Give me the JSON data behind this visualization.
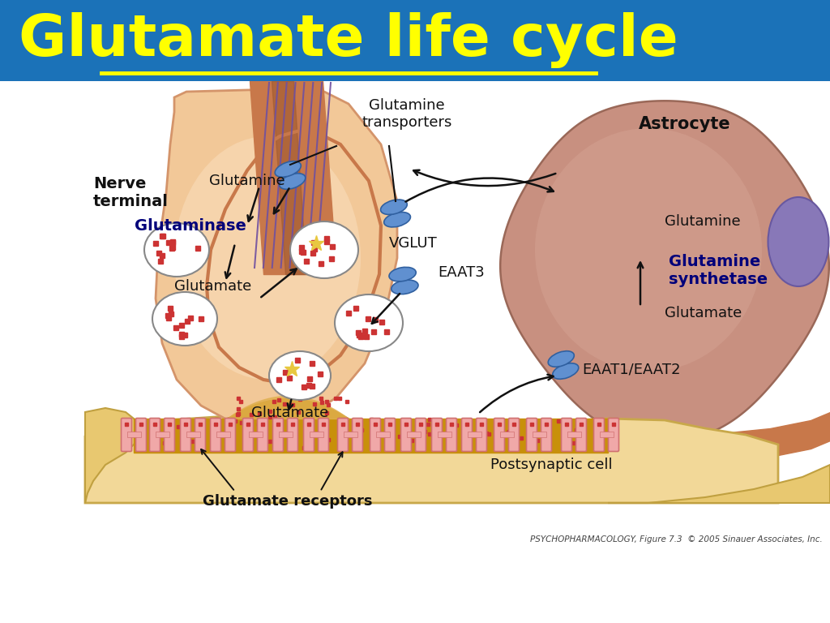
{
  "title": "Glutamate life cycle",
  "title_color": "#FFFF00",
  "title_bg_color": "#1B72B8",
  "bg_color": "#FFFFFF",
  "footer_text": "PSYCHOPHARMACOLOGY, Figure 7.3  © 2005 Sinauer Associates, Inc.",
  "labels": {
    "nerve_terminal": "Nerve\nterminal",
    "astrocyte": "Astrocyte",
    "glutamine_transporters": "Glutamine\ntransporters",
    "glutamine_1": "Glutamine",
    "glutaminase": "Glutaminase",
    "glutamate_1": "Glutamate",
    "eaat3": "EAAT3",
    "vglut": "VGLUT",
    "glutamate_2": "Glutamate",
    "eaat1_eaat2": "EAAT1/EAAT2",
    "glutamine_synthetase": "Glutamine\nsynthetase",
    "glutamine_2": "Glutamine",
    "glutamate_3": "Glutamate",
    "glutamate_release": "Glutamate",
    "postsynaptic_cell": "Postsynaptic cell",
    "glutamate_receptors": "Glutamate receptors"
  },
  "colors": {
    "nerve_body_light": "#F2C898",
    "nerve_body": "#EDB87A",
    "nerve_body_dark": "#D4946A",
    "nerve_axon": "#C8784A",
    "nerve_axon_dark": "#A05A30",
    "axon_lines": "#7050A0",
    "astrocyte_body": "#C89080",
    "astrocyte_light": "#D8A898",
    "astrocyte_bump": "#8878B8",
    "synapse_floor": "#C8900A",
    "synapse_floor_light": "#E0B050",
    "receptor_body": "#F0A8A8",
    "receptor_dark": "#D07070",
    "dots_color": "#CC3333",
    "transporter_fill": "#6090D0",
    "transporter_stroke": "#3060A0",
    "arrow_color": "#111111",
    "text_color": "#111111",
    "bold_text_color": "#00007A"
  }
}
